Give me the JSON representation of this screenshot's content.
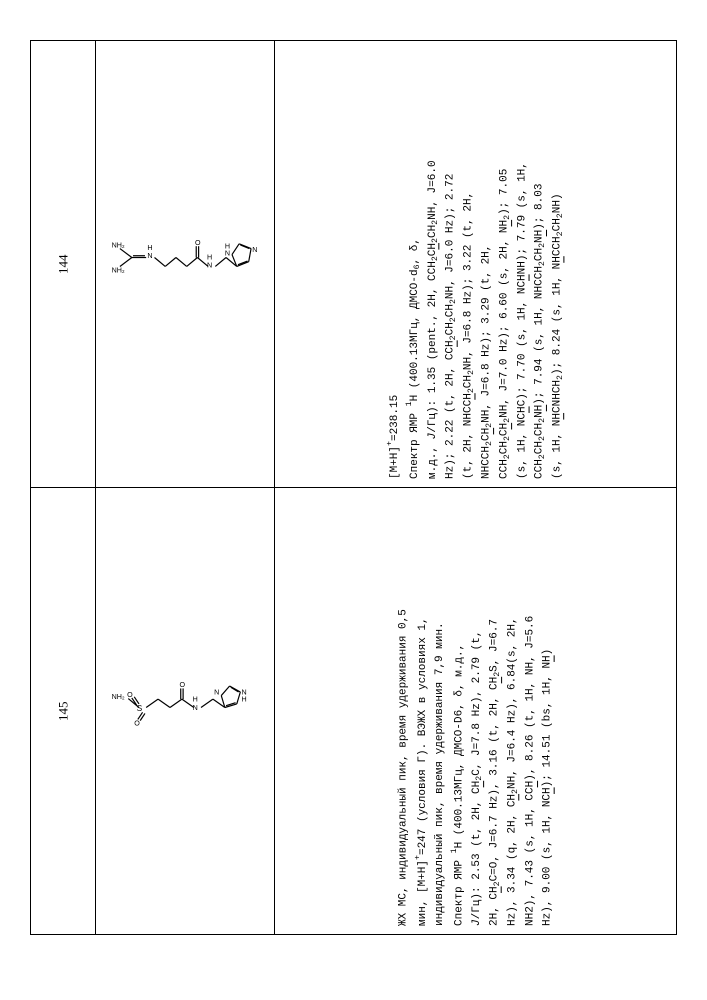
{
  "rows": [
    {
      "id": "144",
      "lines": [
        "[M+H]<sup>+</sup>=238.15",
        "Спектр ЯМР <sup>1</sup>H (400.13МГц, ДМСО-d<sub>6</sub>, δ,",
        "м.д., <i>J</i>/Гц): 1.35 (pent., 2H, CCH<sub>2</sub>C<u>H</u><sub>2</sub>CH<sub>2</sub>NH, J=6.0",
        "Hz); 2.22 (t, 2H, CC<u>H</u><sub>2</sub>CH<sub>2</sub>CH<sub>2</sub>NH, J=6.0 Hz); 2.72",
        "(t, 2H, NHCC<u>H</u><sub>2</sub>CH<sub>2</sub>NH, J=6.8 Hz); 3.22 (t, 2H,",
        "NHCCH<sub>2</sub>C<u>H</u><sub>2</sub>NH, J=6.8 Hz); 3.29 (t, 2H,",
        "CCH<sub>2</sub>CH<sub>2</sub>C<u>H</u><sub>2</sub>NH, J=7.0 Hz); 6.60 (s, 2H, N<u>H</u><sub>2</sub>); 7.05",
        "(s, 1H, NC<u>H</u>C); 7.70 (s, 1H, NC<u>H</u>NH); 7.79 (s, 1H,",
        "CCH<sub>2</sub>CH<sub>2</sub>CH<sub>2</sub>N<u>H</u>); 7.94 (s, 1H, NHCCH<sub>2</sub>CH<sub>2</sub>N<u>H</u>); 8.03",
        "(s, 1H, N<u>H</u>CNHCH<sub>2</sub>); 8.24 (s, 1H, N<u>H</u>CCH<sub>2</sub>CH<sub>2</sub>NH)"
      ]
    },
    {
      "id": "145",
      "lines": [
        "ЖХ МС, индивидуальный пик, время удерживания 0,5",
        "мин, [M+H]<sup>+</sup>=247 (условия Г). ВЭЖХ в условиях 1,",
        "индивидуальный пик, время удерживания 7,9 мин.",
        "Спектр ЯМР <sup>1</sup>H (400.13МГц, ДМСО-D6, δ, м.д.,",
        "<i>J</i>/Гц): 2.53 (t, 2H, C<u>H</u><sub>2</sub>C, J=7.8 Hz), 2.79 (t,",
        "2H, C<u>H</u><sub>2</sub>C=O, J=6.7 Hz), 3.16 (t, 2H, C<u>H</u><sub>2</sub>S, J=6.7",
        "Hz), 3.34 (q, 2H, C<u>H</u><sub>2</sub>NH, J=6.4 Hz), 6.84(s, 2H,",
        "NH2), 7.43 (s, 1H, CC<u>H</u>), 8.26 (t, 1H, NH, J=5.6",
        "Hz), 9.00 (s, 1H, NC<u>H</u>); 14.51 (bs, 1H, N<u>H</u>)"
      ]
    }
  ],
  "style": {
    "background_color": "#ffffff",
    "border_color": "#000000",
    "font_data": "Courier New",
    "font_id": "Times New Roman",
    "fontsize_data": 11,
    "fontsize_id": 13
  }
}
